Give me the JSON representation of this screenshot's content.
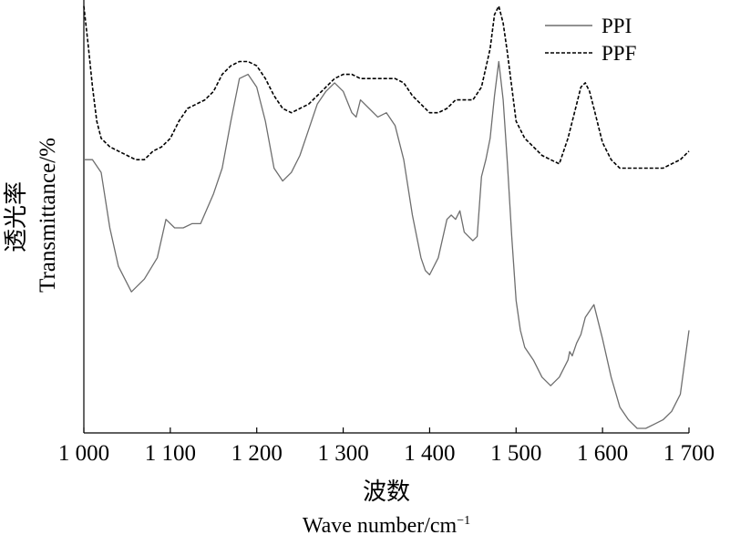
{
  "chart_data": {
    "type": "line",
    "xlabel_cn": "波数",
    "xlabel_en": "Wave number/cm",
    "xlabel_en_sup": "−1",
    "ylabel_cn": "透光率",
    "ylabel_en": "Transmittance/%",
    "xlim": [
      1000,
      1700
    ],
    "x_ticks": [
      1000,
      1100,
      1200,
      1300,
      1400,
      1500,
      1600,
      1700
    ],
    "x_tick_labels": [
      "1 000",
      "1 100",
      "1 200",
      "1 300",
      "1 400",
      "1 500",
      "1 600",
      "1 700"
    ],
    "legend_position": "top-right",
    "series": [
      {
        "name": "PPI",
        "style": "solid",
        "color": "#6e6e6e",
        "x": [
          1000,
          1010,
          1020,
          1030,
          1040,
          1055,
          1070,
          1085,
          1095,
          1105,
          1115,
          1125,
          1135,
          1150,
          1160,
          1170,
          1180,
          1190,
          1200,
          1210,
          1220,
          1230,
          1240,
          1250,
          1260,
          1270,
          1280,
          1290,
          1300,
          1310,
          1315,
          1320,
          1330,
          1340,
          1350,
          1360,
          1370,
          1380,
          1390,
          1395,
          1400,
          1410,
          1420,
          1425,
          1430,
          1435,
          1440,
          1445,
          1450,
          1455,
          1460,
          1465,
          1470,
          1475,
          1480,
          1485,
          1490,
          1495,
          1500,
          1505,
          1510,
          1520,
          1530,
          1540,
          1550,
          1560,
          1562,
          1565,
          1570,
          1575,
          1580,
          1590,
          1600,
          1610,
          1620,
          1630,
          1640,
          1650,
          1660,
          1670,
          1680,
          1690,
          1700
        ],
        "y": [
          0.63,
          0.63,
          0.6,
          0.47,
          0.38,
          0.32,
          0.35,
          0.4,
          0.49,
          0.47,
          0.47,
          0.48,
          0.48,
          0.55,
          0.61,
          0.72,
          0.82,
          0.83,
          0.8,
          0.72,
          0.61,
          0.58,
          0.6,
          0.64,
          0.7,
          0.76,
          0.79,
          0.81,
          0.79,
          0.74,
          0.73,
          0.77,
          0.75,
          0.73,
          0.74,
          0.71,
          0.63,
          0.5,
          0.4,
          0.37,
          0.36,
          0.4,
          0.49,
          0.5,
          0.49,
          0.51,
          0.46,
          0.45,
          0.44,
          0.45,
          0.59,
          0.63,
          0.68,
          0.78,
          0.86,
          0.77,
          0.62,
          0.45,
          0.3,
          0.23,
          0.19,
          0.16,
          0.12,
          0.1,
          0.12,
          0.16,
          0.18,
          0.17,
          0.2,
          0.22,
          0.26,
          0.29,
          0.21,
          0.12,
          0.05,
          0.02,
          0.0,
          0.0,
          0.01,
          0.02,
          0.04,
          0.08,
          0.23
        ]
      },
      {
        "name": "PPF",
        "style": "dashed",
        "color": "#000000",
        "x": [
          1000,
          1005,
          1010,
          1015,
          1020,
          1030,
          1040,
          1050,
          1060,
          1070,
          1080,
          1090,
          1100,
          1110,
          1120,
          1130,
          1140,
          1150,
          1160,
          1170,
          1180,
          1190,
          1200,
          1210,
          1220,
          1230,
          1240,
          1250,
          1260,
          1270,
          1280,
          1290,
          1300,
          1310,
          1320,
          1330,
          1340,
          1350,
          1360,
          1370,
          1380,
          1390,
          1400,
          1410,
          1420,
          1430,
          1440,
          1450,
          1460,
          1470,
          1475,
          1480,
          1485,
          1490,
          1500,
          1510,
          1520,
          1530,
          1540,
          1550,
          1560,
          1570,
          1575,
          1580,
          1585,
          1590,
          1600,
          1610,
          1620,
          1630,
          1640,
          1650,
          1660,
          1670,
          1680,
          1690,
          1700
        ],
        "y": [
          0.99,
          0.9,
          0.8,
          0.72,
          0.68,
          0.66,
          0.65,
          0.64,
          0.63,
          0.63,
          0.65,
          0.66,
          0.68,
          0.72,
          0.75,
          0.76,
          0.77,
          0.79,
          0.83,
          0.85,
          0.86,
          0.86,
          0.85,
          0.82,
          0.78,
          0.75,
          0.74,
          0.75,
          0.76,
          0.78,
          0.8,
          0.82,
          0.83,
          0.83,
          0.82,
          0.82,
          0.82,
          0.82,
          0.82,
          0.81,
          0.78,
          0.76,
          0.74,
          0.74,
          0.75,
          0.77,
          0.77,
          0.77,
          0.8,
          0.89,
          0.97,
          0.99,
          0.95,
          0.88,
          0.72,
          0.68,
          0.66,
          0.64,
          0.63,
          0.62,
          0.68,
          0.76,
          0.8,
          0.81,
          0.79,
          0.75,
          0.67,
          0.63,
          0.61,
          0.61,
          0.61,
          0.61,
          0.61,
          0.61,
          0.62,
          0.63,
          0.65
        ]
      }
    ]
  }
}
